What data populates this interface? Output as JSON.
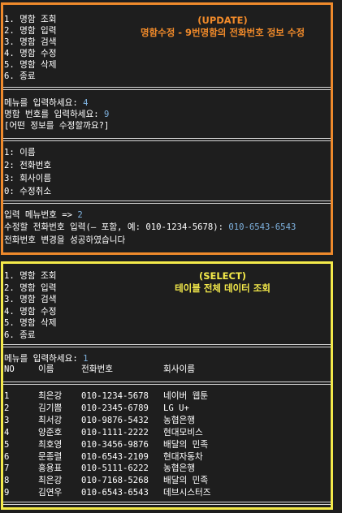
{
  "update_panel": {
    "caption_title": "(UPDATE)",
    "caption_desc": "명함수정 - 9번명함의 전화번호 정보 수정",
    "menu": [
      "1. 명함 조회",
      "2. 명함 입력",
      "3. 명함 검색",
      "4. 명함 수정",
      "5. 명함 삭제",
      "6. 종료"
    ],
    "menu_prompt": "메뉴를 입력하세요: ",
    "menu_value": "4",
    "card_prompt": "명함 번호를 입력하세요: ",
    "card_value": "9",
    "question": "[어떤 정보를 수정할까요?]",
    "options": [
      "1: 이름",
      "2: 전화번호",
      "3: 회사이름",
      "0: 수정취소"
    ],
    "option_prompt": "입력 메뉴번호 => ",
    "option_value": "2",
    "phone_prompt": "수정할 전화번호 입력(– 포함, 예: 010-1234-5678): ",
    "phone_value": "010-6543-6543",
    "result": "전화번호 변경을 성공하였습니다"
  },
  "select_panel": {
    "caption_title": "(SELECT)",
    "caption_desc": "테이블 전체 데이터 조회",
    "menu": [
      "1. 명함 조회",
      "2. 명함 입력",
      "3. 명함 검색",
      "4. 명함 수정",
      "5. 명함 삭제",
      "6. 종료"
    ],
    "menu_prompt": "메뉴를 입력하세요: ",
    "menu_value": "1",
    "table": {
      "headers": [
        "NO",
        "이름",
        "전화번호",
        "회사이름"
      ],
      "rows": [
        [
          "1",
          "최은강",
          "010-1234-5678",
          "네이버 웹툰"
        ],
        [
          "2",
          "김기쁨",
          "010-2345-6789",
          "LG U+"
        ],
        [
          "3",
          "최서강",
          "010-9876-5432",
          "농협은행"
        ],
        [
          "4",
          "양준호",
          "010-1111-2222",
          "현대모비스"
        ],
        [
          "5",
          "최호영",
          "010-3456-9876",
          "배달의 민족"
        ],
        [
          "6",
          "문종렬",
          "010-6543-2109",
          "현대자동차"
        ],
        [
          "7",
          "홍용표",
          "010-5111-6222",
          "농협은행"
        ],
        [
          "8",
          "최은강",
          "010-7168-5268",
          "배달의 민족"
        ],
        [
          "9",
          "김연우",
          "010-6543-6543",
          "데브시스터즈"
        ]
      ]
    }
  },
  "colors": {
    "update_border": "#ef8a2c",
    "select_border": "#f4ea4a",
    "input_value": "#7fb3e0",
    "background": "#1e1e1e"
  }
}
